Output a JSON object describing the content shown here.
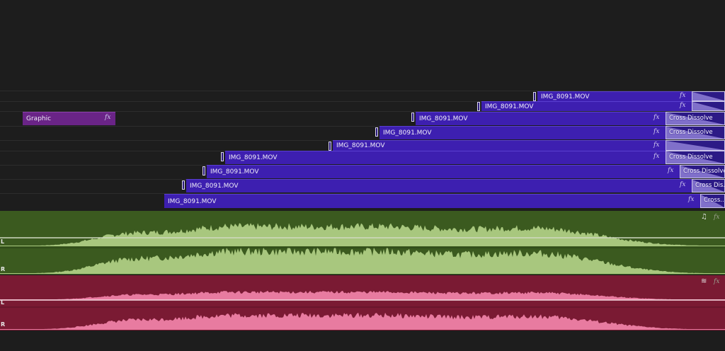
{
  "video_tracks": {
    "graphic_clip": {
      "label": "Graphic",
      "fx": "fx"
    },
    "clips": [
      {
        "label": "IMG_8091.MOV",
        "fx": "fx",
        "transition": ""
      },
      {
        "label": "IMG_8091.MOV",
        "fx": "fx",
        "transition": ""
      },
      {
        "label": "IMG_8091.MOV",
        "fx": "fx",
        "transition": "Cross Dissolve"
      },
      {
        "label": "IMG_8091.MOV",
        "fx": "fx",
        "transition": "Cross Dissolve"
      },
      {
        "label": "IMG_8091.MOV",
        "fx": "fx",
        "transition": ""
      },
      {
        "label": "IMG_8091.MOV",
        "fx": "fx",
        "transition": "Cross Dissolve"
      },
      {
        "label": "IMG_8091.MOV",
        "fx": "fx",
        "transition": "Cross Dissolve"
      },
      {
        "label": "IMG_8091.MOV",
        "fx": "fx",
        "transition": "Cross Dis..."
      },
      {
        "label": "IMG_8091.MOV",
        "fx": "fx",
        "transition": "Cross..."
      }
    ]
  },
  "audio_tracks": [
    {
      "channels": [
        "L",
        "R"
      ],
      "fx": "fx",
      "icon": "music-note-icon",
      "color": "#3b5a1f",
      "wave_color": "#a8c77e"
    },
    {
      "channels": [
        "L",
        "R"
      ],
      "fx": "fx",
      "icon": "waveform-link-icon",
      "color": "#7a1a33",
      "wave_color": "#e87ba0"
    }
  ]
}
